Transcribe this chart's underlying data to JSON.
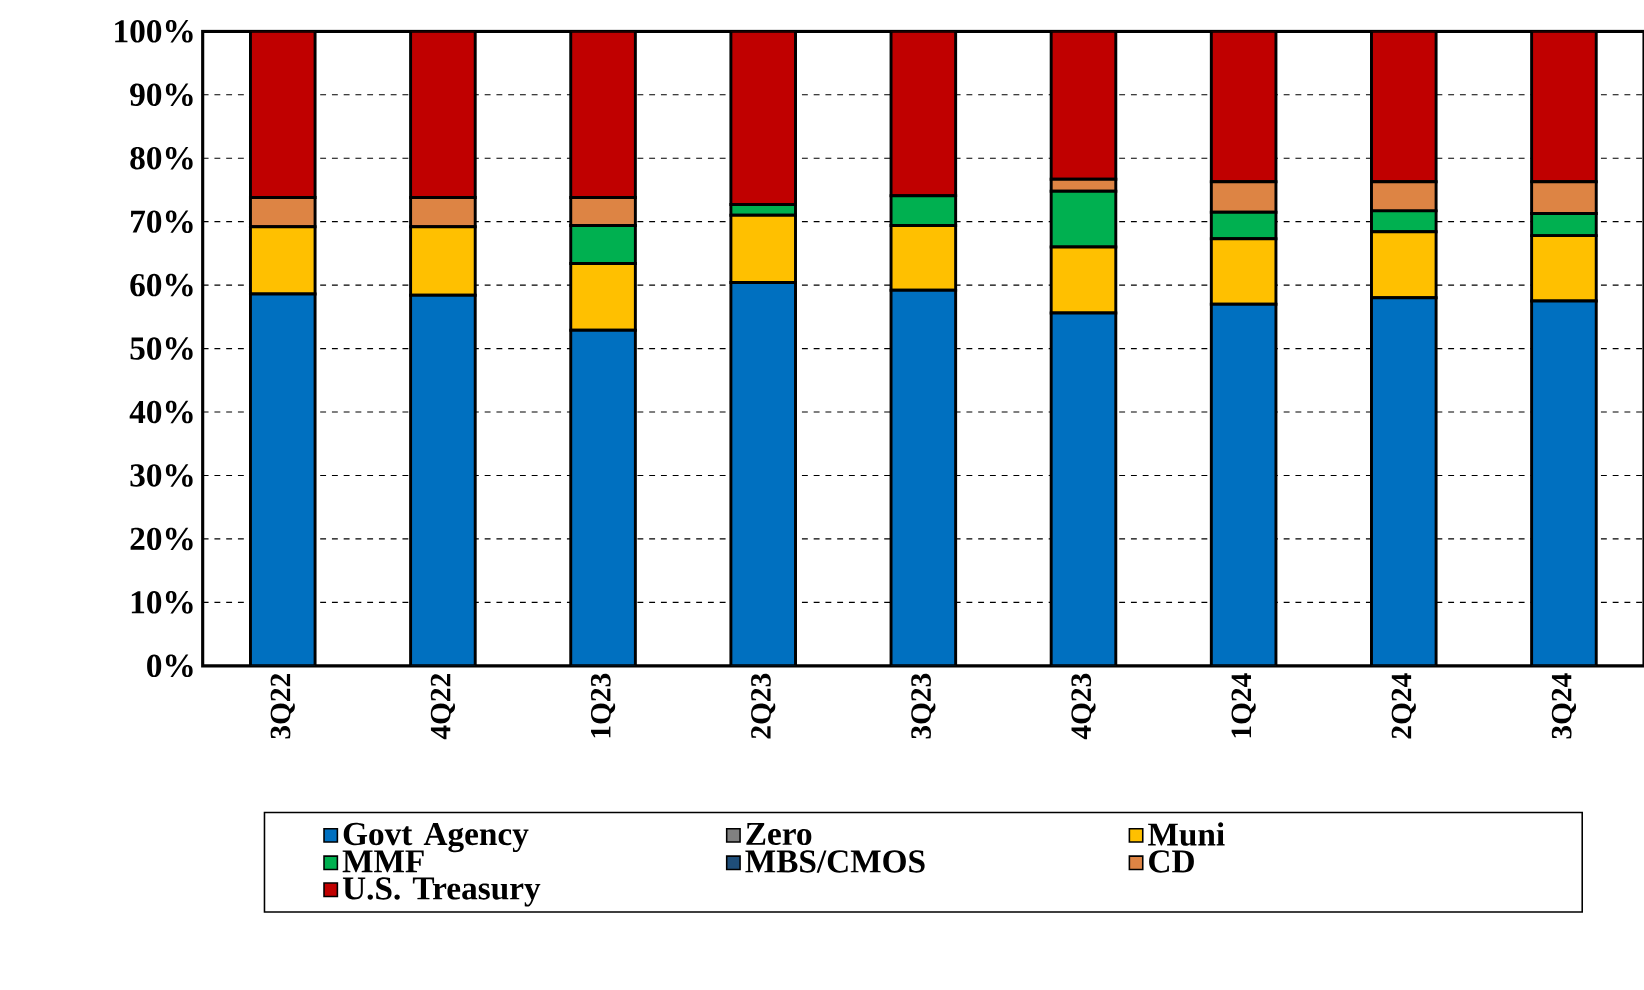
{
  "chart_data": {
    "type": "bar",
    "stacked": true,
    "categories": [
      "3Q22",
      "4Q22",
      "1Q23",
      "2Q23",
      "3Q23",
      "4Q23",
      "1Q24",
      "2Q24",
      "3Q24"
    ],
    "series": [
      {
        "name": "Govt Agency",
        "color": "#0070c0",
        "values": [
          58.6,
          58.4,
          52.9,
          60.4,
          59.2,
          55.6,
          57.0,
          58.0,
          57.5
        ]
      },
      {
        "name": "Zero",
        "color": "#808080",
        "values": [
          0,
          0,
          0,
          0,
          0,
          0,
          0,
          0,
          0
        ]
      },
      {
        "name": "Muni",
        "color": "#ffc000",
        "values": [
          10.6,
          10.8,
          10.5,
          10.6,
          10.2,
          10.4,
          10.3,
          10.4,
          10.3
        ]
      },
      {
        "name": "MMF",
        "color": "#00b050",
        "values": [
          0,
          0,
          6.0,
          1.7,
          4.7,
          8.8,
          4.2,
          3.3,
          3.5
        ]
      },
      {
        "name": "MBS/CMOS",
        "color": "#1f4e79",
        "values": [
          0,
          0,
          0,
          0,
          0,
          0,
          0,
          0,
          0
        ]
      },
      {
        "name": "CD",
        "color": "#dd8444",
        "values": [
          4.6,
          4.6,
          4.4,
          0,
          0,
          1.9,
          4.8,
          4.6,
          5.0
        ]
      },
      {
        "name": "U.S. Treasury",
        "color": "#c00000",
        "values": [
          26.2,
          26.2,
          26.2,
          27.3,
          25.9,
          23.3,
          23.7,
          23.7,
          23.7
        ]
      }
    ],
    "ylim": [
      0,
      100
    ],
    "yticks": [
      {
        "value": 0,
        "label": "0%"
      },
      {
        "value": 10,
        "label": "10%"
      },
      {
        "value": 20,
        "label": "20%"
      },
      {
        "value": 30,
        "label": "30%"
      },
      {
        "value": 40,
        "label": "40%"
      },
      {
        "value": 50,
        "label": "50%"
      },
      {
        "value": 60,
        "label": "60%"
      },
      {
        "value": 70,
        "label": "70%"
      },
      {
        "value": 80,
        "label": "80%"
      },
      {
        "value": 90,
        "label": "90%"
      },
      {
        "value": 100,
        "label": "100%"
      }
    ],
    "grid": "y",
    "legend": "bottom"
  }
}
